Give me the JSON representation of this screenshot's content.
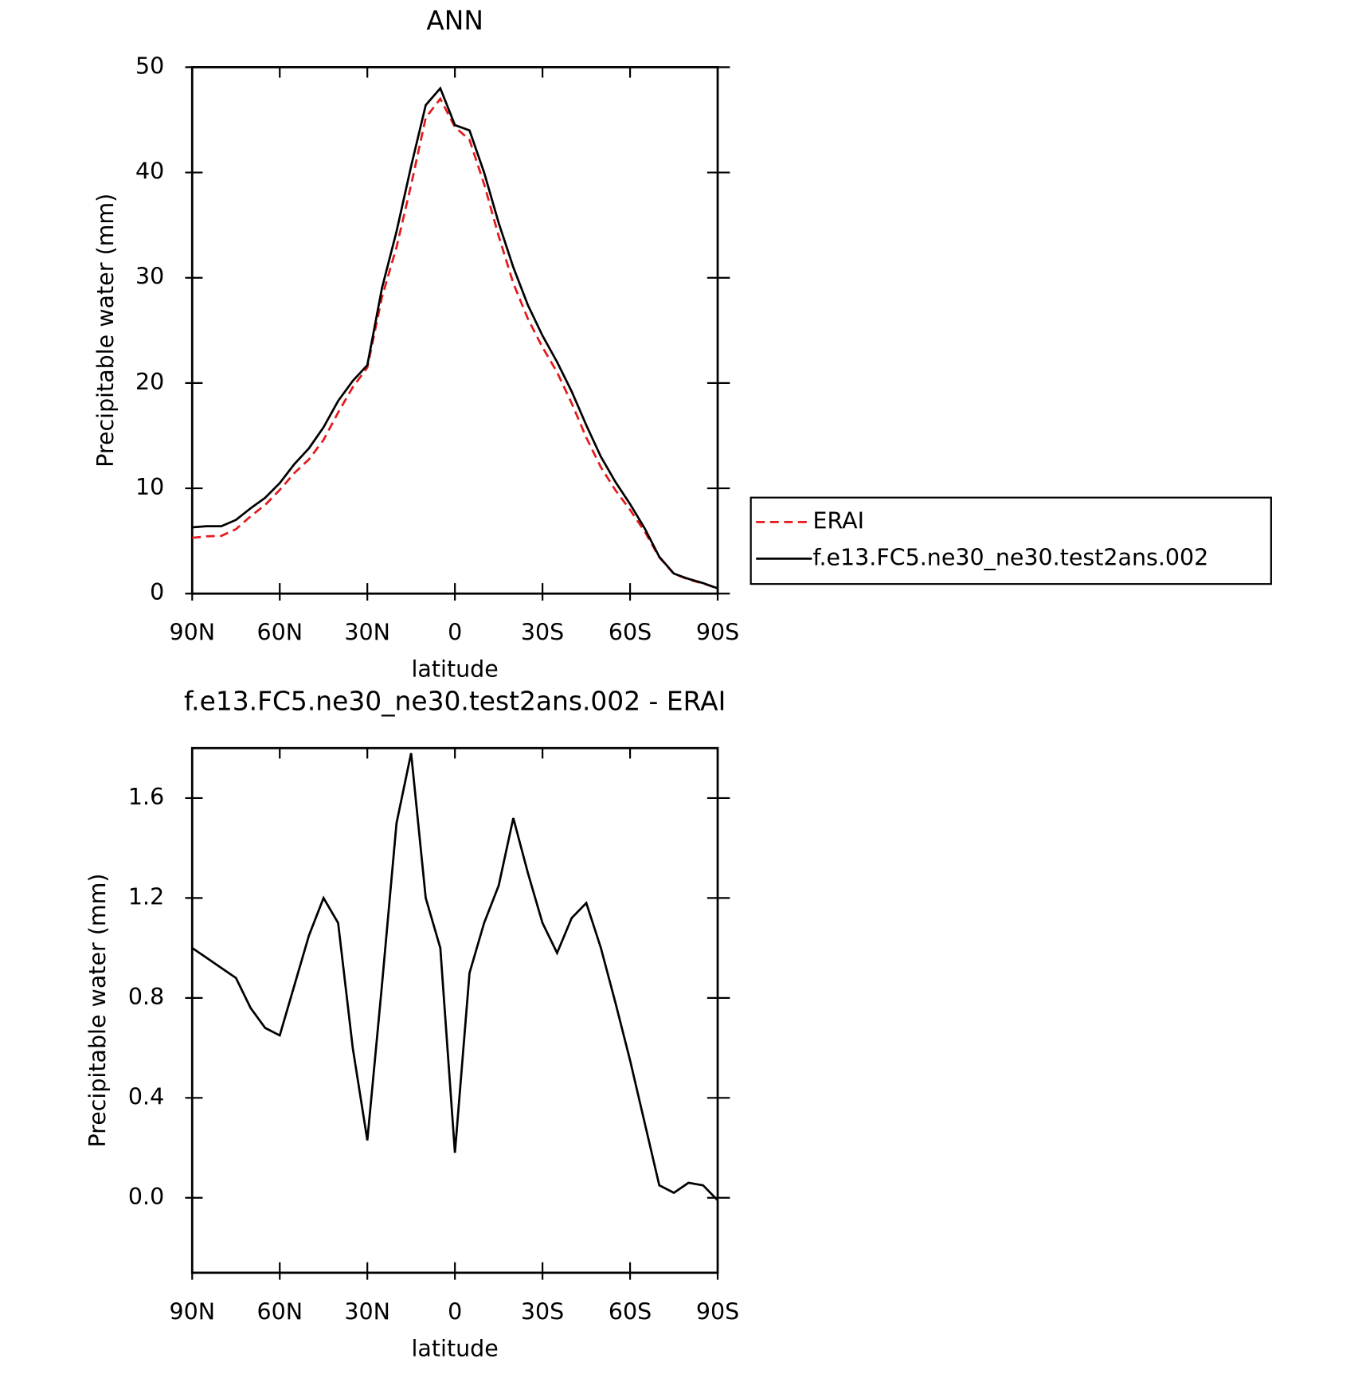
{
  "chart_data": [
    {
      "type": "line",
      "title": "ANN",
      "xlabel": "latitude",
      "ylabel": "Precipitable water (mm)",
      "x": [
        90,
        85,
        80,
        75,
        70,
        65,
        60,
        55,
        50,
        45,
        40,
        35,
        30,
        25,
        20,
        15,
        10,
        5,
        0,
        -5,
        -10,
        -15,
        -20,
        -25,
        -30,
        -35,
        -40,
        -45,
        -50,
        -55,
        -60,
        -65,
        -70,
        -75,
        -80,
        -85,
        -90
      ],
      "series": [
        {
          "name": "ERAI",
          "color": "#e41a1c",
          "dashed": true,
          "values": [
            5.3,
            5.44,
            5.48,
            6.12,
            7.34,
            8.42,
            9.85,
            11.45,
            12.75,
            14.6,
            17.2,
            19.6,
            21.47,
            28.15,
            32.9,
            38.82,
            45.2,
            47.0,
            44.32,
            43.1,
            38.9,
            33.95,
            29.48,
            26.1,
            23.4,
            21.02,
            18.08,
            14.82,
            12.0,
            9.82,
            7.95,
            5.9,
            3.45,
            1.88,
            1.34,
            0.95,
            0.51
          ]
        },
        {
          "name": "f.e13.FC5.ne30_ne30.test2ans.002",
          "color": "#000000",
          "dashed": false,
          "values": [
            6.3,
            6.4,
            6.4,
            7.0,
            8.1,
            9.1,
            10.5,
            12.3,
            13.8,
            15.8,
            18.3,
            20.2,
            21.7,
            29.0,
            34.4,
            40.6,
            46.4,
            48.0,
            44.5,
            44.0,
            40.0,
            35.2,
            31.0,
            27.4,
            24.5,
            22.0,
            19.2,
            16.0,
            13.0,
            10.6,
            8.5,
            6.2,
            3.5,
            1.9,
            1.4,
            1.0,
            0.5
          ]
        }
      ],
      "xlim": [
        90,
        -90
      ],
      "xticks": [
        {
          "value": 90,
          "label": "90N"
        },
        {
          "value": 60,
          "label": "60N"
        },
        {
          "value": 30,
          "label": "30N"
        },
        0,
        {
          "value": -30,
          "label": "30S"
        },
        {
          "value": -60,
          "label": "60S"
        },
        {
          "value": -90,
          "label": "90S"
        }
      ],
      "ylim": [
        0,
        50
      ],
      "yticks": [
        0,
        10,
        20,
        30,
        40,
        50
      ],
      "legend": "right"
    },
    {
      "type": "line",
      "title": "f.e13.FC5.ne30_ne30.test2ans.002 - ERAI",
      "xlabel": "latitude",
      "ylabel": "Precipitable water (mm)",
      "x": [
        90,
        85,
        80,
        75,
        70,
        65,
        60,
        55,
        50,
        45,
        40,
        35,
        30,
        25,
        20,
        15,
        10,
        5,
        0,
        -5,
        -10,
        -15,
        -20,
        -25,
        -30,
        -35,
        -40,
        -45,
        -50,
        -55,
        -60,
        -65,
        -70,
        -75,
        -80,
        -85,
        -90
      ],
      "series": [
        {
          "color": "#000000",
          "dashed": false,
          "values": [
            1.0,
            0.96,
            0.92,
            0.88,
            0.76,
            0.68,
            0.65,
            0.85,
            1.05,
            1.2,
            1.1,
            0.6,
            0.23,
            0.85,
            1.5,
            1.78,
            1.2,
            1.0,
            0.18,
            0.9,
            1.1,
            1.25,
            1.52,
            1.3,
            1.1,
            0.98,
            1.12,
            1.18,
            1.0,
            0.78,
            0.55,
            0.3,
            0.05,
            0.02,
            0.06,
            0.05,
            -0.01
          ]
        }
      ],
      "xlim": [
        90,
        -90
      ],
      "xticks": [
        {
          "value": 90,
          "label": "90N"
        },
        {
          "value": 60,
          "label": "60N"
        },
        {
          "value": 30,
          "label": "30N"
        },
        0,
        {
          "value": -30,
          "label": "30S"
        },
        {
          "value": -60,
          "label": "60S"
        },
        {
          "value": -90,
          "label": "90S"
        }
      ],
      "ylim": [
        -0.3,
        1.8
      ],
      "yticks": [
        {
          "value": 0,
          "label": "0.0"
        },
        0.4,
        0.8,
        1.2,
        1.6
      ]
    }
  ]
}
